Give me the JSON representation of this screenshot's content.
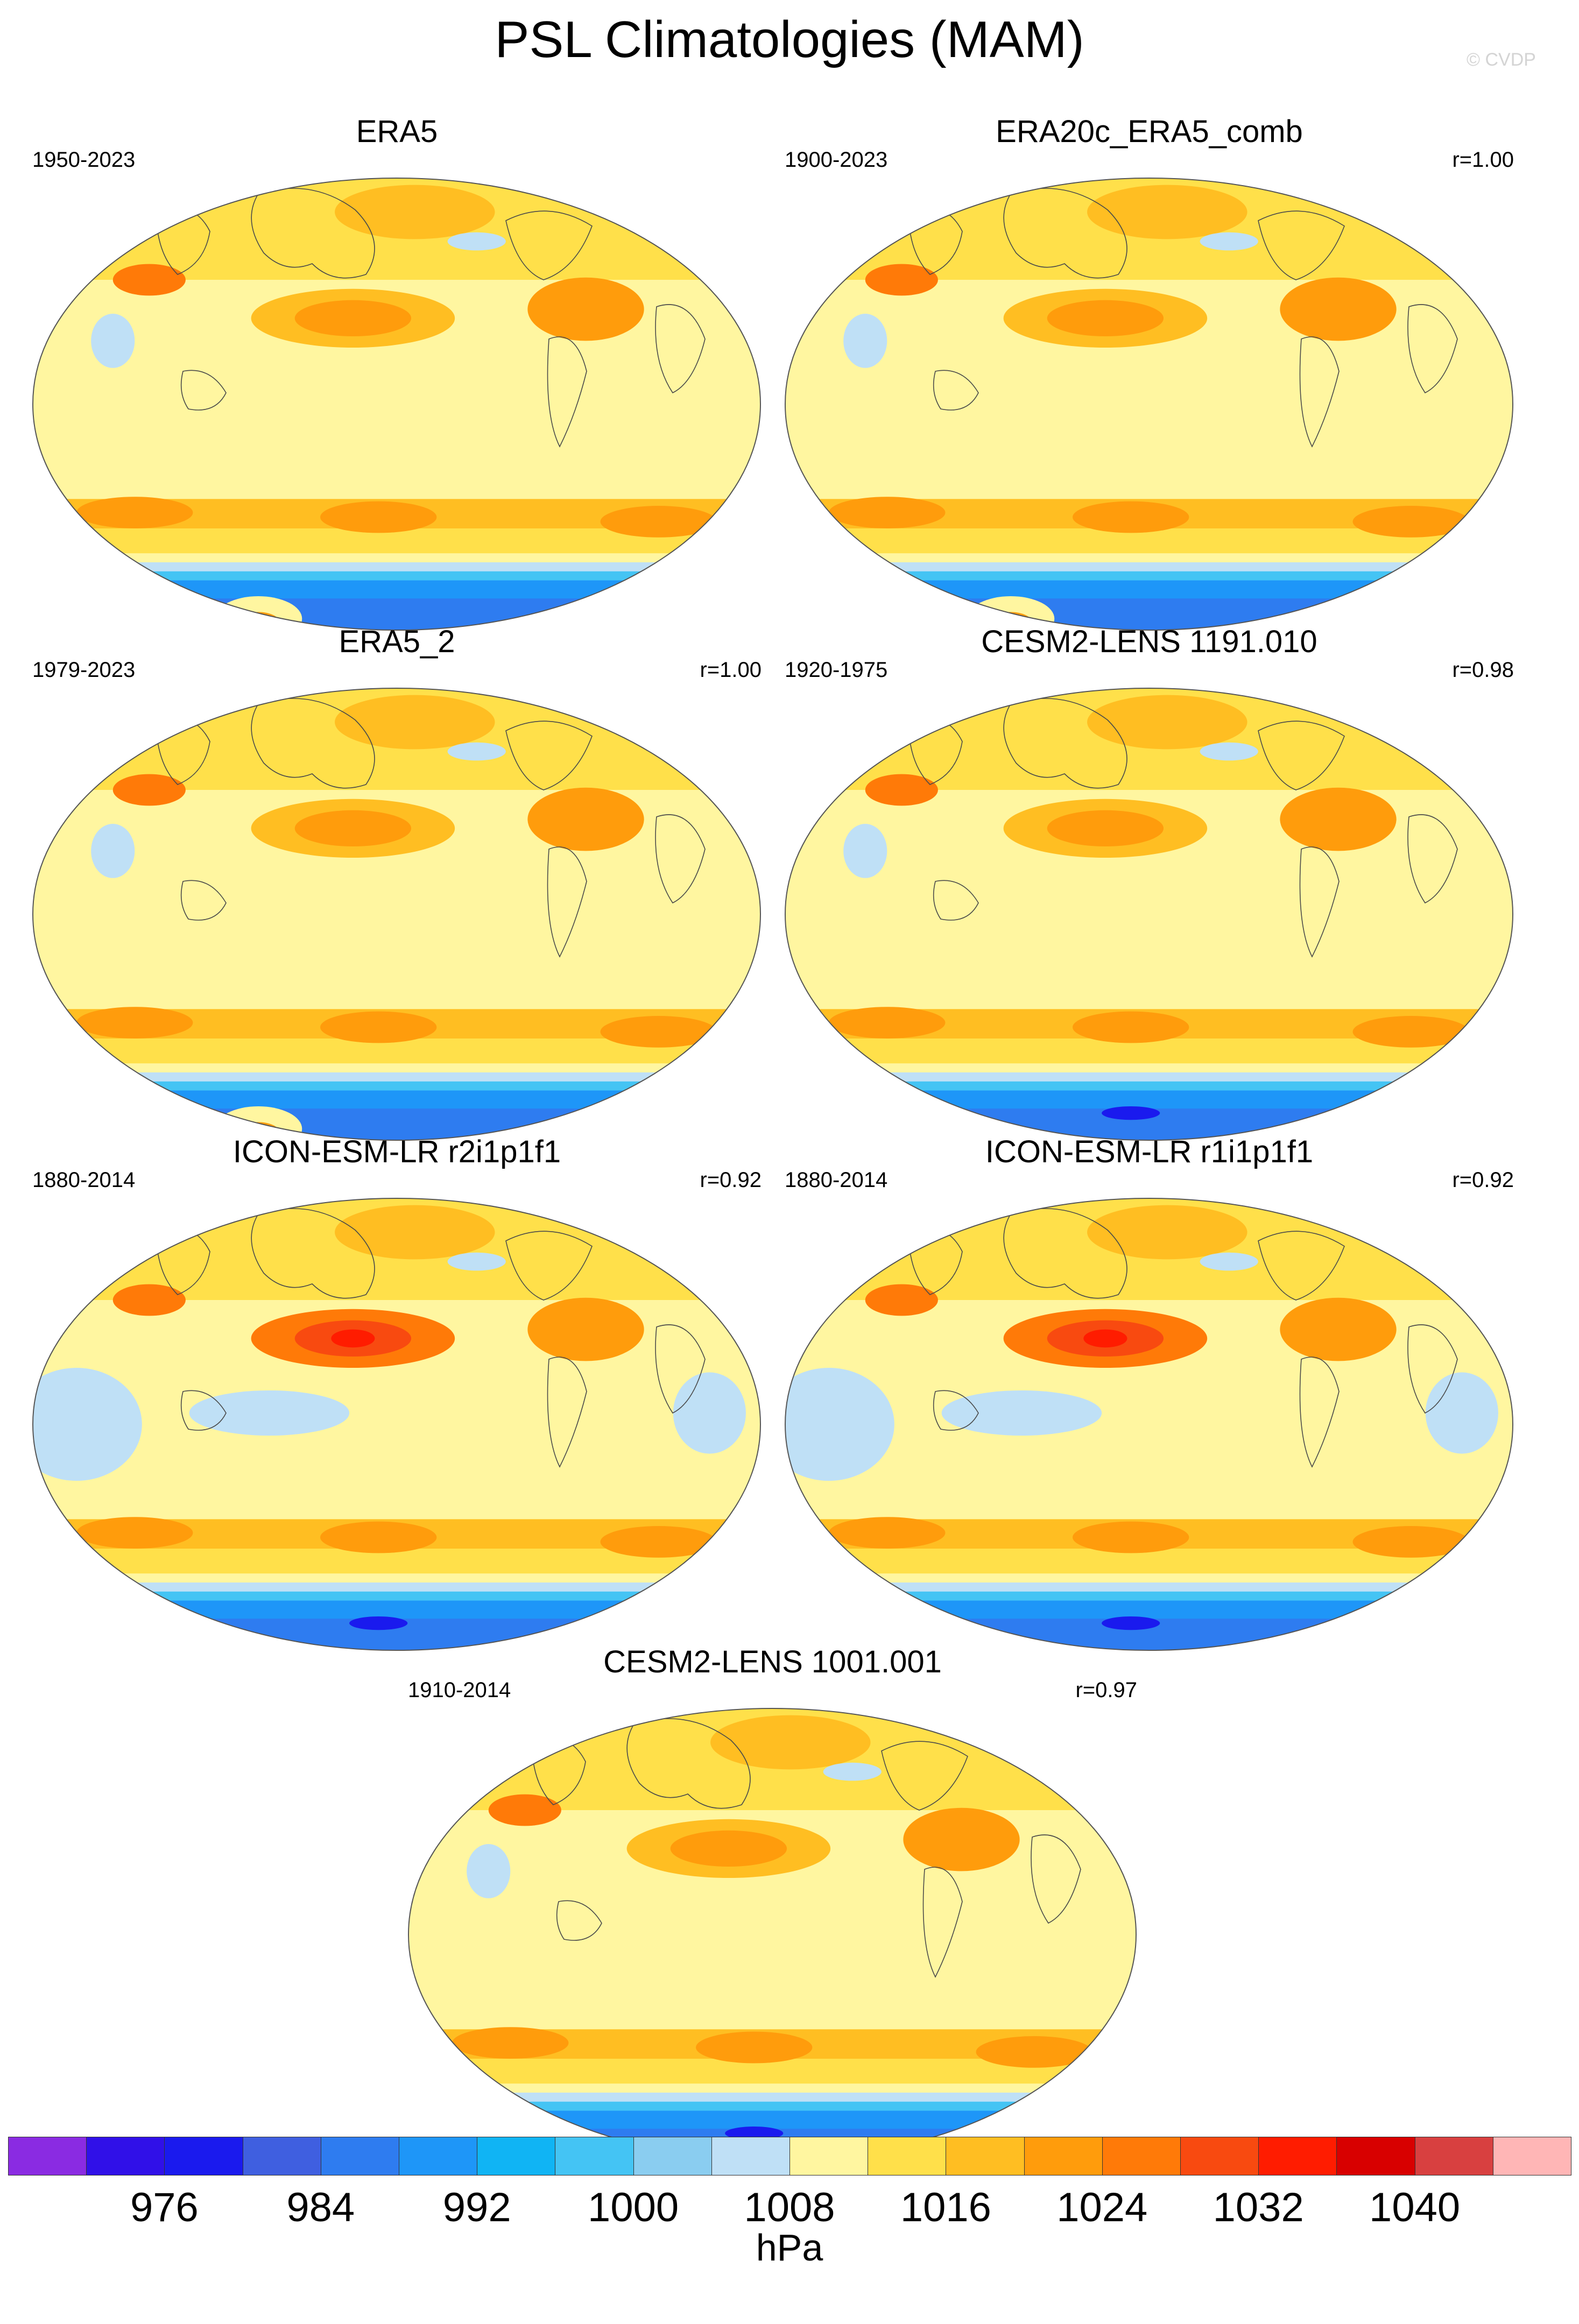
{
  "title": "PSL Climatologies (MAM)",
  "credit": "© CVDP",
  "panels": [
    {
      "title": "ERA5",
      "period": "1950-2023",
      "corr": "",
      "variant": "era"
    },
    {
      "title": "ERA20c_ERA5_comb",
      "period": "1900-2023",
      "corr": "r=1.00",
      "variant": "era"
    },
    {
      "title": "ERA5_2",
      "period": "1979-2023",
      "corr": "r=1.00",
      "variant": "era"
    },
    {
      "title": "CESM2-LENS 1191.010",
      "period": "1920-1975",
      "corr": "r=0.98",
      "variant": "cesm"
    },
    {
      "title": "ICON-ESM-LR r2i1p1f1",
      "period": "1880-2014",
      "corr": "r=0.92",
      "variant": "icon"
    },
    {
      "title": "ICON-ESM-LR r1i1p1f1",
      "period": "1880-2014",
      "corr": "r=0.92",
      "variant": "icon"
    },
    {
      "title": "CESM2-LENS 1001.001",
      "period": "1910-2014",
      "corr": "r=0.97",
      "variant": "cesm"
    }
  ],
  "colorbar": {
    "units": "hPa",
    "labels": [
      "976",
      "984",
      "992",
      "1000",
      "1008",
      "1016",
      "1024",
      "1032",
      "1040"
    ],
    "colors": [
      "#8a2be2",
      "#3010e8",
      "#1a1aee",
      "#3f5fe0",
      "#2e7cf0",
      "#1e96f8",
      "#10b4f4",
      "#44c4f4",
      "#8acdf0",
      "#bfe0f6",
      "#fff6a0",
      "#ffe04a",
      "#ffbe22",
      "#ff9c0c",
      "#ff7a08",
      "#f84a10",
      "#ff1c00",
      "#d80000",
      "#d84040",
      "#ffb6b6"
    ]
  }
}
